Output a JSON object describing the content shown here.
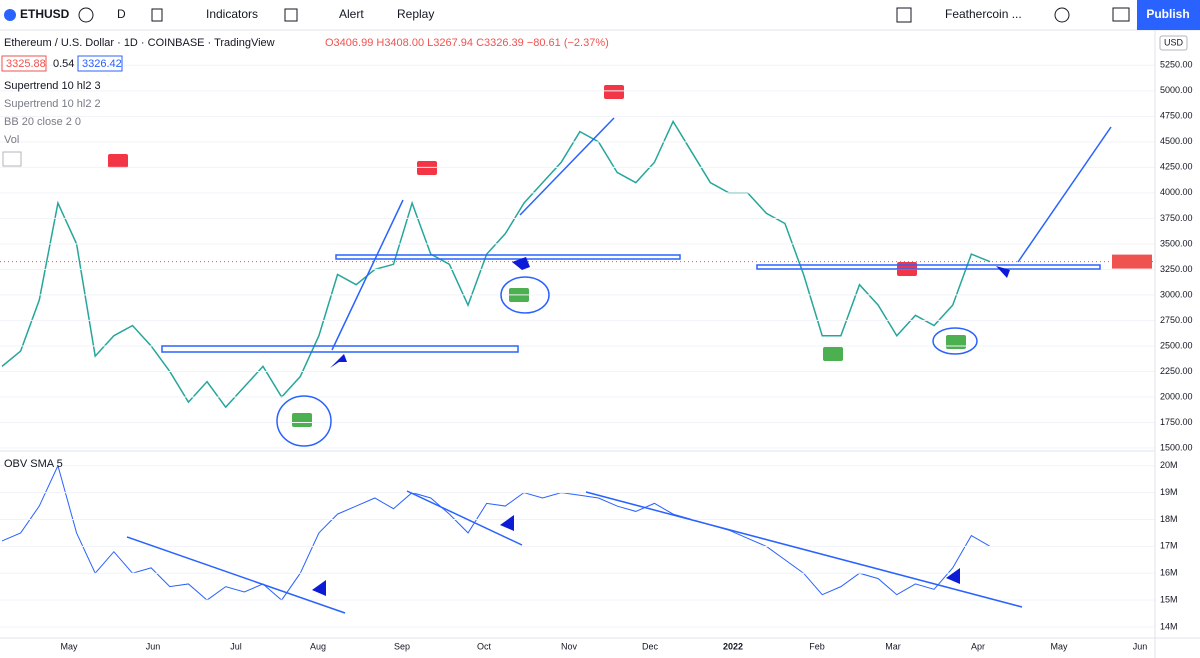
{
  "toolbar": {
    "symbol": "ETHUSD",
    "interval": "D",
    "indicators": "Indicators",
    "alert": "Alert",
    "replay": "Replay",
    "layout": "Feathercoin ...",
    "publish": "Publish"
  },
  "legend": {
    "title": "Ethereum / U.S. Dollar · 1D · COINBASE · TradingView",
    "ohlc": "O3406.99 H3408.00 L3267.94 C3326.39 −80.61 (−2.37%)",
    "bid": "3325.88",
    "spread": "0.54",
    "ask": "3326.42",
    "studies": [
      "Supertrend 10 hl2 3",
      "Supertrend 10 hl2 2",
      "BB 20 close 2 0",
      "Vol"
    ],
    "obv": "OBV SMA 5"
  },
  "signals": [
    "Sell",
    "Sell",
    "Sell",
    "Sell",
    "Buy",
    "Buy",
    "Buy",
    "Buy"
  ],
  "price": {
    "currency": "USD",
    "symbol_tag": "ETHUSD",
    "last": 3326.39,
    "values": [
      2300,
      2450,
      2950,
      3900,
      3500,
      2400,
      2600,
      2700,
      2500,
      2250,
      1950,
      2150,
      1900,
      2100,
      2300,
      2000,
      2200,
      2600,
      3200,
      3100,
      3250,
      3300,
      3900,
      3400,
      3300,
      2900,
      3400,
      3600,
      3900,
      4100,
      4300,
      4600,
      4500,
      4200,
      4100,
      4300,
      4700,
      4400,
      4100,
      4000,
      4000,
      3800,
      3700,
      3200,
      2600,
      2600,
      3100,
      2900,
      2600,
      2800,
      2700,
      2900,
      3400,
      3326
    ],
    "ylim": [
      1500,
      5400
    ],
    "yticks": [
      {
        "value": 5250,
        "label": "5250.00"
      },
      {
        "value": 5000,
        "label": "5000.00"
      },
      {
        "value": 4750,
        "label": "4750.00"
      },
      {
        "value": 4500,
        "label": "4500.00"
      },
      {
        "value": 4250,
        "label": "4250.00"
      },
      {
        "value": 4000,
        "label": "4000.00"
      },
      {
        "value": 3750,
        "label": "3750.00"
      },
      {
        "value": 3500,
        "label": "3500.00"
      },
      {
        "value": 3250,
        "label": "3250.00"
      },
      {
        "value": 3000,
        "label": "3000.00"
      },
      {
        "value": 2750,
        "label": "2750.00"
      },
      {
        "value": 2500,
        "label": "2500.00"
      },
      {
        "value": 2250,
        "label": "2250.00"
      },
      {
        "value": 2000,
        "label": "2000.00"
      },
      {
        "value": 1750,
        "label": "1750.00"
      },
      {
        "value": 1500,
        "label": "1500.00"
      }
    ]
  },
  "obv": {
    "values": [
      17.2,
      17.5,
      18.5,
      20.0,
      17.5,
      16.0,
      16.8,
      16.0,
      16.2,
      15.5,
      15.6,
      15.0,
      15.5,
      15.3,
      15.6,
      15.0,
      16.0,
      17.5,
      18.2,
      18.5,
      18.8,
      18.4,
      19.0,
      18.8,
      18.2,
      17.5,
      18.6,
      18.5,
      19.0,
      18.8,
      19.0,
      18.9,
      18.8,
      18.5,
      18.3,
      18.6,
      18.2,
      18.0,
      17.8,
      17.6,
      17.3,
      17.0,
      16.5,
      16.0,
      15.2,
      15.5,
      16.0,
      15.8,
      15.2,
      15.6,
      15.4,
      16.2,
      17.4,
      17.0
    ],
    "ylim": [
      13.7,
      20.4
    ],
    "yticks": [
      {
        "value": 20,
        "label": "20M"
      },
      {
        "value": 19,
        "label": "19M"
      },
      {
        "value": 18,
        "label": "18M"
      },
      {
        "value": 17,
        "label": "17M"
      },
      {
        "value": 16,
        "label": "16M"
      },
      {
        "value": 15,
        "label": "15M"
      },
      {
        "value": 14,
        "label": "14M"
      }
    ]
  },
  "time_labels": [
    "May",
    "Jun",
    "Jul",
    "Aug",
    "Sep",
    "Oct",
    "Nov",
    "Dec",
    "2022",
    "Feb",
    "Mar",
    "Apr",
    "May",
    "Jun"
  ]
}
